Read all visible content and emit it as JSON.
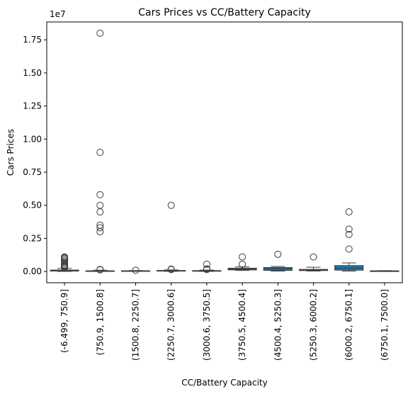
{
  "chart_data": {
    "type": "box",
    "title": "Cars Prices vs CC/Battery Capacity",
    "xlabel": "CC/Battery Capacity",
    "ylabel": "Cars Prices",
    "y_offset_text": "1e7",
    "y_scale": 10000000,
    "ylim": [
      -850000,
      18850000
    ],
    "yticks": [
      0,
      2500000,
      5000000,
      7500000,
      10000000,
      12500000,
      15000000,
      17500000
    ],
    "ytick_labels": [
      "0.00",
      "0.25",
      "0.50",
      "0.75",
      "1.00",
      "1.25",
      "1.50",
      "1.75"
    ],
    "categories": [
      "(-6.499, 750.9]",
      "(750.9, 1500.8]",
      "(1500.8, 2250.7]",
      "(2250.7, 3000.6]",
      "(3000.6, 3750.5]",
      "(3750.5, 4500.4]",
      "(4500.4, 5250.3]",
      "(5250.3, 6000.2]",
      "(6000.2, 6750.1]",
      "(6750.1, 7500.0]"
    ],
    "boxes": [
      {
        "whisker_low": 5000,
        "q1": 30000,
        "median": 60000,
        "q3": 110000,
        "whisker_high": 230000,
        "outliers": [
          300000,
          350000,
          400000,
          450000,
          500000,
          600000,
          700000,
          800000,
          900000,
          1000000,
          1050000,
          1100000
        ]
      },
      {
        "whisker_low": 5000,
        "q1": 20000,
        "median": 35000,
        "q3": 55000,
        "whisker_high": 100000,
        "outliers": [
          120000,
          150000,
          3000000,
          3300000,
          3500000,
          4500000,
          5000000,
          5800000,
          9000000,
          18000000
        ]
      },
      {
        "whisker_low": 30000,
        "q1": 40000,
        "median": 50000,
        "q3": 60000,
        "whisker_high": 75000,
        "outliers": [
          95000
        ]
      },
      {
        "whisker_low": 10000,
        "q1": 30000,
        "median": 50000,
        "q3": 80000,
        "whisker_high": 120000,
        "outliers": [
          150000,
          180000,
          5000000
        ]
      },
      {
        "whisker_low": 10000,
        "q1": 25000,
        "median": 45000,
        "q3": 70000,
        "whisker_high": 110000,
        "outliers": [
          150000,
          200000,
          550000
        ]
      },
      {
        "whisker_low": 80000,
        "q1": 120000,
        "median": 180000,
        "q3": 250000,
        "whisker_high": 350000,
        "outliers": [
          550000,
          1100000
        ]
      },
      {
        "whisker_low": 30000,
        "q1": 80000,
        "median": 200000,
        "q3": 300000,
        "whisker_high": 380000,
        "outliers": [
          1300000
        ]
      },
      {
        "whisker_low": 30000,
        "q1": 70000,
        "median": 100000,
        "q3": 160000,
        "whisker_high": 320000,
        "outliers": [
          1100000
        ]
      },
      {
        "whisker_low": 30000,
        "q1": 100000,
        "median": 250000,
        "q3": 450000,
        "whisker_high": 650000,
        "outliers": [
          1700000,
          2800000,
          3200000,
          4500000
        ]
      },
      {
        "whisker_low": 20000,
        "q1": 30000,
        "median": 40000,
        "q3": 50000,
        "whisker_high": 70000,
        "outliers": []
      }
    ],
    "box_color": "#1f77b4",
    "grid": false,
    "legend": "none"
  }
}
